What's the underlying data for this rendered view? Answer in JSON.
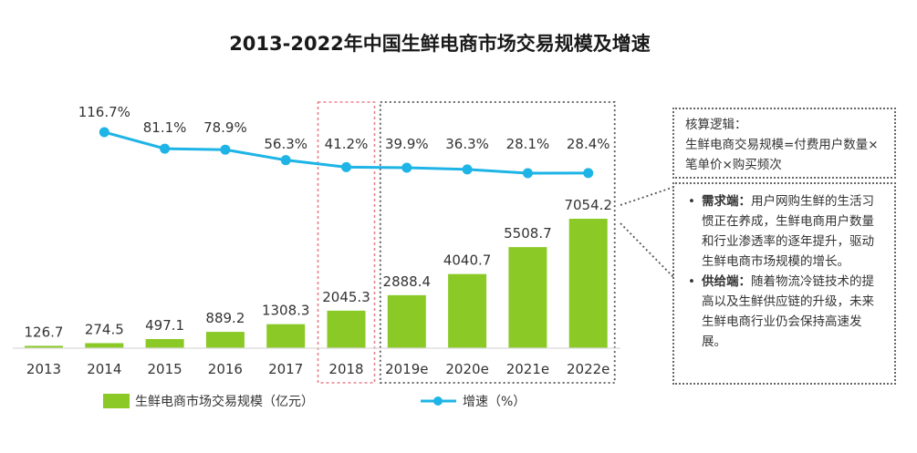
{
  "chart_data": {
    "type": "bar+line",
    "title": "2013-2022年中国生鲜电商市场交易规模及增速",
    "categories": [
      "2013",
      "2014",
      "2015",
      "2016",
      "2017",
      "2018",
      "2019e",
      "2020e",
      "2021e",
      "2022e"
    ],
    "series": [
      {
        "name": "生鲜电商市场交易规模（亿元）",
        "type": "bar",
        "color": "#8ac926",
        "values": [
          126.7,
          274.5,
          497.1,
          889.2,
          1308.3,
          2045.3,
          2888.4,
          4040.7,
          5508.7,
          7054.2
        ],
        "labels": [
          "126.7",
          "274.5",
          "497.1",
          "889.2",
          "1308.3",
          "2045.3",
          "2888.4",
          "4040.7",
          "5508.7",
          "7054.2"
        ]
      },
      {
        "name": "增速（%）",
        "type": "line",
        "color": "#1eb4e6",
        "values": [
          null,
          116.7,
          81.1,
          78.9,
          56.3,
          41.2,
          39.9,
          36.3,
          28.1,
          28.4
        ],
        "labels": [
          "",
          "116.7%",
          "81.1%",
          "78.9%",
          "56.3%",
          "41.2%",
          "39.9%",
          "36.3%",
          "28.1%",
          "28.4%"
        ]
      }
    ],
    "highlight_2018": "2018",
    "forecast_group": [
      "2019e",
      "2020e",
      "2021e",
      "2022e"
    ],
    "legend_position": "bottom"
  },
  "notes": {
    "logic_title": "核算逻辑：",
    "logic_text": "生鲜电商交易规模=付费用户数量×笔单价×购买频次",
    "bullets": [
      {
        "marker": "•",
        "head": "需求端：",
        "text": "用户网购生鲜的生活习惯正在养成，生鲜电商用户数量和行业渗透率的逐年提升，驱动生鲜电商市场规模的增长。"
      },
      {
        "marker": "•",
        "head": "供给端：",
        "text": "随着物流冷链技术的提高以及生鲜供应链的升级，未来生鲜电商行业仍会保持高速发展。"
      }
    ]
  }
}
